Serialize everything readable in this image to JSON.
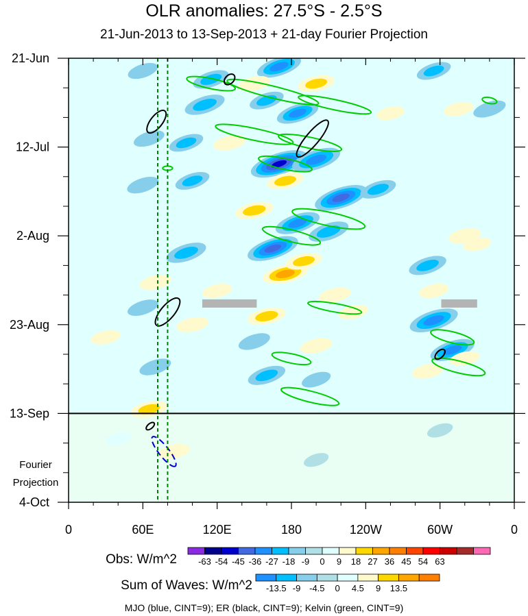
{
  "chart_data": {
    "type": "heatmap",
    "title": "OLR anomalies: 27.5°S - 2.5°S",
    "subtitle": "21-Jun-2013 to 13-Sep-2013 + 21-day Fourier Projection",
    "x_ticks": [
      "0",
      "60E",
      "120E",
      "180",
      "120W",
      "60W",
      "0"
    ],
    "x_range": [
      "0",
      "0"
    ],
    "y_ticks": [
      "21-Jun",
      "12-Jul",
      "2-Aug",
      "23-Aug",
      "13-Sep",
      "4-Oct"
    ],
    "y_range": [
      "21-Jun-2013",
      "4-Oct-2013"
    ],
    "forecast_label": [
      "Fourier",
      "Projection"
    ],
    "obs_colorbar": {
      "label": "Obs: W/m^2",
      "levels": [
        "-63",
        "-54",
        "-45",
        "-36",
        "-27",
        "-18",
        "-9",
        "0",
        "9",
        "18",
        "27",
        "36",
        "45",
        "54",
        "63"
      ],
      "colors": [
        "#8a2be2",
        "#00008b",
        "#0000cd",
        "#4169e1",
        "#1e90ff",
        "#00bfff",
        "#87ceeb",
        "#b0e0e6",
        "#e0ffff",
        "#fffacd",
        "#ffd700",
        "#ffa500",
        "#ff7f00",
        "#ff4500",
        "#ff0000",
        "#cd0000",
        "#a52a2a",
        "#ff69b4"
      ]
    },
    "waves_colorbar": {
      "label": "Sum of Waves: W/m^2",
      "levels": [
        "-13.5",
        "-9",
        "-4.5",
        "0",
        "4.5",
        "9",
        "13.5"
      ],
      "colors": [
        "#1e90ff",
        "#00bfff",
        "#87ceeb",
        "#b0e0e6",
        "#e0ffff",
        "#fffacd",
        "#ffd700",
        "#ffa500",
        "#ff7f00"
      ]
    },
    "footnote": "MJO (blue, CINT=9); ER (black, CINT=9); Kelvin (green, CINT=9)",
    "series_colors": {
      "mjo": "#0000cd",
      "er": "#000000",
      "kelvin": "#00cc00"
    },
    "vertical_lines_lon": [
      72,
      80
    ],
    "vertical_line_color": "#008000",
    "anomaly_blobs": [
      {
        "lon": 60,
        "day": 3,
        "v": -13
      },
      {
        "lon": 115,
        "day": 5,
        "v": -20
      },
      {
        "lon": 170,
        "day": 2,
        "v": -30
      },
      {
        "lon": 200,
        "day": 6,
        "v": 20
      },
      {
        "lon": 150,
        "day": 6,
        "v": 15
      },
      {
        "lon": 295,
        "day": 3,
        "v": -18
      },
      {
        "lon": 315,
        "day": 12,
        "v": 12
      },
      {
        "lon": 110,
        "day": 11,
        "v": -25
      },
      {
        "lon": 160,
        "day": 10,
        "v": -18
      },
      {
        "lon": 185,
        "day": 13,
        "v": -27
      },
      {
        "lon": 260,
        "day": 13,
        "v": 10
      },
      {
        "lon": 340,
        "day": 12,
        "v": -16
      },
      {
        "lon": 65,
        "day": 19,
        "v": -14
      },
      {
        "lon": 95,
        "day": 20,
        "v": -18
      },
      {
        "lon": 130,
        "day": 20,
        "v": 15
      },
      {
        "lon": 170,
        "day": 25,
        "v": -45
      },
      {
        "lon": 200,
        "day": 24,
        "v": -35
      },
      {
        "lon": 175,
        "day": 29,
        "v": 20
      },
      {
        "lon": 220,
        "day": 33,
        "v": -40
      },
      {
        "lon": 250,
        "day": 31,
        "v": -20
      },
      {
        "lon": 60,
        "day": 30,
        "v": -15
      },
      {
        "lon": 100,
        "day": 29,
        "v": -18
      },
      {
        "lon": 150,
        "day": 36,
        "v": 22
      },
      {
        "lon": 185,
        "day": 39,
        "v": -30
      },
      {
        "lon": 210,
        "day": 41,
        "v": -25
      },
      {
        "lon": 320,
        "day": 42,
        "v": 15
      },
      {
        "lon": 330,
        "day": 44,
        "v": 10
      },
      {
        "lon": 95,
        "day": 46,
        "v": -25
      },
      {
        "lon": 165,
        "day": 45,
        "v": -38
      },
      {
        "lon": 175,
        "day": 51,
        "v": 30
      },
      {
        "lon": 190,
        "day": 48,
        "v": 20
      },
      {
        "lon": 290,
        "day": 49,
        "v": -22
      },
      {
        "lon": 70,
        "day": 53,
        "v": 14
      },
      {
        "lon": 120,
        "day": 55,
        "v": 12
      },
      {
        "lon": 215,
        "day": 56,
        "v": 15
      },
      {
        "lon": 295,
        "day": 55,
        "v": 12
      },
      {
        "lon": 60,
        "day": 59,
        "v": -14
      },
      {
        "lon": 160,
        "day": 61,
        "v": 22
      },
      {
        "lon": 230,
        "day": 60,
        "v": 12
      },
      {
        "lon": 295,
        "day": 62,
        "v": -35
      },
      {
        "lon": 100,
        "day": 63,
        "v": 15
      },
      {
        "lon": 30,
        "day": 66,
        "v": 12
      },
      {
        "lon": 150,
        "day": 67,
        "v": -15
      },
      {
        "lon": 200,
        "day": 68,
        "v": 15
      },
      {
        "lon": 310,
        "day": 69,
        "v": -30
      },
      {
        "lon": 320,
        "day": 71,
        "v": 12
      },
      {
        "lon": 70,
        "day": 73,
        "v": -15
      },
      {
        "lon": 160,
        "day": 75,
        "v": -22
      },
      {
        "lon": 200,
        "day": 76,
        "v": -12
      },
      {
        "lon": 290,
        "day": 74,
        "v": 14
      },
      {
        "lon": 65,
        "day": 83,
        "v": 20
      },
      {
        "lon": 85,
        "day": 93,
        "v": 14
      },
      {
        "lon": 40,
        "day": 90,
        "v": 8
      },
      {
        "lon": 300,
        "day": 88,
        "v": -8
      },
      {
        "lon": 200,
        "day": 95,
        "v": -7
      }
    ],
    "kelvin_contours": [
      {
        "lon": 165,
        "day": 8,
        "rx": 38,
        "ry": 1.4,
        "angle": 14
      },
      {
        "lon": 215,
        "day": 11,
        "rx": 30,
        "ry": 1.2,
        "angle": 12
      },
      {
        "lon": 115,
        "day": 6,
        "rx": 20,
        "ry": 1.2,
        "angle": 12
      },
      {
        "lon": 150,
        "day": 18,
        "rx": 32,
        "ry": 1.4,
        "angle": 12
      },
      {
        "lon": 195,
        "day": 20,
        "rx": 26,
        "ry": 1.3,
        "angle": 12
      },
      {
        "lon": 175,
        "day": 25,
        "rx": 22,
        "ry": 1.3,
        "angle": 12
      },
      {
        "lon": 210,
        "day": 38,
        "rx": 30,
        "ry": 1.6,
        "angle": 12
      },
      {
        "lon": 180,
        "day": 42,
        "rx": 24,
        "ry": 1.4,
        "angle": 14
      },
      {
        "lon": 215,
        "day": 59,
        "rx": 22,
        "ry": 1.0,
        "angle": 10
      },
      {
        "lon": 310,
        "day": 66,
        "rx": 18,
        "ry": 1.3,
        "angle": 14
      },
      {
        "lon": 315,
        "day": 73,
        "rx": 22,
        "ry": 1.4,
        "angle": 14
      },
      {
        "lon": 180,
        "day": 71,
        "rx": 16,
        "ry": 1.1,
        "angle": 12
      },
      {
        "lon": 195,
        "day": 80,
        "rx": 24,
        "ry": 1.3,
        "angle": 14
      },
      {
        "lon": 340,
        "day": 10,
        "rx": 6,
        "ry": 0.7,
        "angle": 12
      },
      {
        "lon": 80,
        "day": 26,
        "rx": 4,
        "ry": 0.5,
        "angle": 0
      }
    ],
    "er_contours": [
      {
        "lon": 71,
        "day": 15,
        "rx": 11,
        "ry": 1.4,
        "angle": -52
      },
      {
        "lon": 197,
        "day": 19,
        "rx": 19,
        "ry": 1.5,
        "angle": -50
      },
      {
        "lon": 130,
        "day": 5,
        "rx": 5,
        "ry": 1.0,
        "angle": -45
      },
      {
        "lon": 80,
        "day": 60,
        "rx": 14,
        "ry": 1.6,
        "angle": -50
      },
      {
        "lon": 300,
        "day": 70,
        "rx": 5,
        "ry": 0.8,
        "angle": -45
      },
      {
        "lon": 66,
        "day": 87,
        "rx": 4,
        "ry": 0.6,
        "angle": -40
      }
    ],
    "mjo_contours": [
      {
        "lon": 77,
        "day": 93,
        "rx": 15,
        "ry": 1.2,
        "angle": 52
      }
    ],
    "missing_bars": [
      {
        "lon0": 108,
        "lon1": 152,
        "day": 58
      },
      {
        "lon0": 301,
        "lon1": 330,
        "day": 58
      }
    ]
  }
}
